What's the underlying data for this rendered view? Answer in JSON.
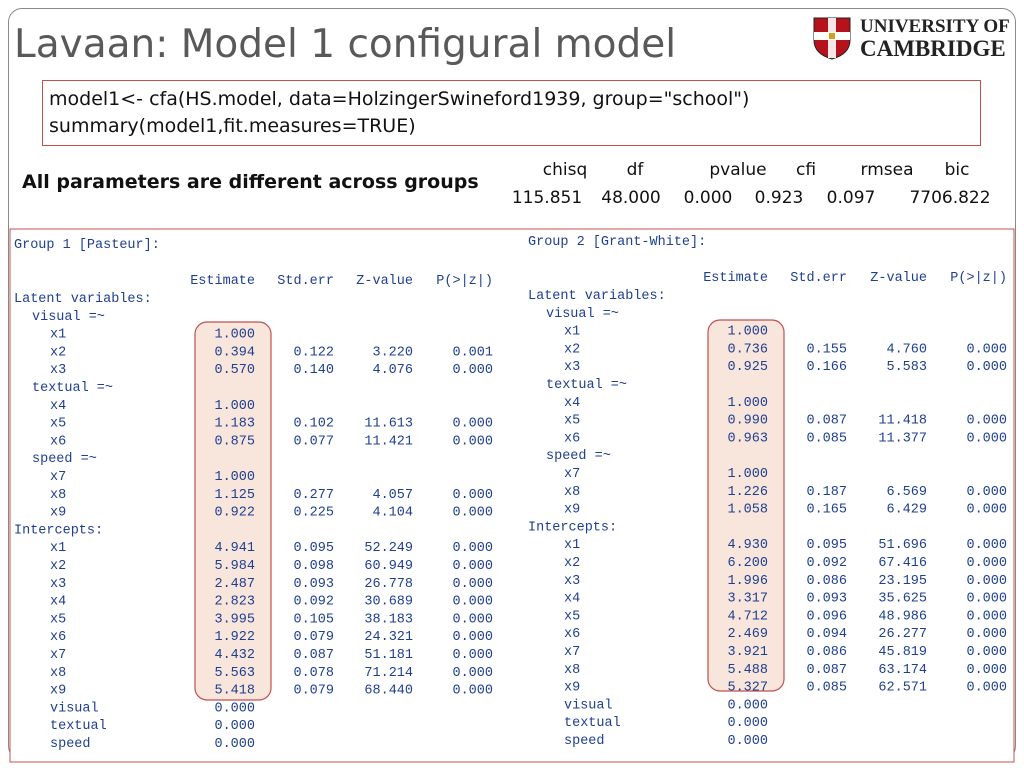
{
  "title": "Lavaan: Model 1 configural model",
  "logo": {
    "line1": "UNIVERSITY OF",
    "line2": "CAMBRIDGE"
  },
  "code": [
    "model1<- cfa(HS.model, data=HolzingerSwineford1939, group=\"school\")",
    "summary(model1,fit.measures=TRUE)"
  ],
  "note": "All parameters are different across groups",
  "fit": {
    "headers": [
      "chisq",
      "df",
      "pvalue",
      "cfi",
      "rmsea",
      "bic"
    ],
    "values": [
      "115.851",
      "48.000",
      "0.000",
      "0.923",
      "0.097",
      "7706.822"
    ]
  },
  "groups": [
    {
      "title": "Group 1 [Pasteur]:",
      "headers": [
        "Estimate",
        "Std.err",
        "Z-value",
        "P(>|z|)"
      ],
      "sections": [
        {
          "title": "Latent variables:",
          "blocks": [
            {
              "title": "visual =~",
              "rows": [
                [
                  "x1",
                  "1.000"
                ],
                [
                  "x2",
                  "0.394",
                  "0.122",
                  "3.220",
                  "0.001"
                ],
                [
                  "x3",
                  "0.570",
                  "0.140",
                  "4.076",
                  "0.000"
                ]
              ]
            },
            {
              "title": "textual =~",
              "rows": [
                [
                  "x4",
                  "1.000"
                ],
                [
                  "x5",
                  "1.183",
                  "0.102",
                  "11.613",
                  "0.000"
                ],
                [
                  "x6",
                  "0.875",
                  "0.077",
                  "11.421",
                  "0.000"
                ]
              ]
            },
            {
              "title": "speed =~",
              "rows": [
                [
                  "x7",
                  "1.000"
                ],
                [
                  "x8",
                  "1.125",
                  "0.277",
                  "4.057",
                  "0.000"
                ],
                [
                  "x9",
                  "0.922",
                  "0.225",
                  "4.104",
                  "0.000"
                ]
              ]
            }
          ]
        },
        {
          "title": "Intercepts:",
          "rows": [
            [
              "x1",
              "4.941",
              "0.095",
              "52.249",
              "0.000"
            ],
            [
              "x2",
              "5.984",
              "0.098",
              "60.949",
              "0.000"
            ],
            [
              "x3",
              "2.487",
              "0.093",
              "26.778",
              "0.000"
            ],
            [
              "x4",
              "2.823",
              "0.092",
              "30.689",
              "0.000"
            ],
            [
              "x5",
              "3.995",
              "0.105",
              "38.183",
              "0.000"
            ],
            [
              "x6",
              "1.922",
              "0.079",
              "24.321",
              "0.000"
            ],
            [
              "x7",
              "4.432",
              "0.087",
              "51.181",
              "0.000"
            ],
            [
              "x8",
              "5.563",
              "0.078",
              "71.214",
              "0.000"
            ],
            [
              "x9",
              "5.418",
              "0.079",
              "68.440",
              "0.000"
            ],
            [
              "visual",
              "0.000"
            ],
            [
              "textual",
              "0.000"
            ],
            [
              "speed",
              "0.000"
            ]
          ]
        }
      ]
    },
    {
      "title": "Group 2 [Grant-White]:",
      "headers": [
        "Estimate",
        "Std.err",
        "Z-value",
        "P(>|z|)"
      ],
      "sections": [
        {
          "title": "Latent variables:",
          "blocks": [
            {
              "title": "visual =~",
              "rows": [
                [
                  "x1",
                  "1.000"
                ],
                [
                  "x2",
                  "0.736",
                  "0.155",
                  "4.760",
                  "0.000"
                ],
                [
                  "x3",
                  "0.925",
                  "0.166",
                  "5.583",
                  "0.000"
                ]
              ]
            },
            {
              "title": "textual =~",
              "rows": [
                [
                  "x4",
                  "1.000"
                ],
                [
                  "x5",
                  "0.990",
                  "0.087",
                  "11.418",
                  "0.000"
                ],
                [
                  "x6",
                  "0.963",
                  "0.085",
                  "11.377",
                  "0.000"
                ]
              ]
            },
            {
              "title": "speed =~",
              "rows": [
                [
                  "x7",
                  "1.000"
                ],
                [
                  "x8",
                  "1.226",
                  "0.187",
                  "6.569",
                  "0.000"
                ],
                [
                  "x9",
                  "1.058",
                  "0.165",
                  "6.429",
                  "0.000"
                ]
              ]
            }
          ]
        },
        {
          "title": "Intercepts:",
          "rows": [
            [
              "x1",
              "4.930",
              "0.095",
              "51.696",
              "0.000"
            ],
            [
              "x2",
              "6.200",
              "0.092",
              "67.416",
              "0.000"
            ],
            [
              "x3",
              "1.996",
              "0.086",
              "23.195",
              "0.000"
            ],
            [
              "x4",
              "3.317",
              "0.093",
              "35.625",
              "0.000"
            ],
            [
              "x5",
              "4.712",
              "0.096",
              "48.986",
              "0.000"
            ],
            [
              "x6",
              "2.469",
              "0.094",
              "26.277",
              "0.000"
            ],
            [
              "x7",
              "3.921",
              "0.086",
              "45.819",
              "0.000"
            ],
            [
              "x8",
              "5.488",
              "0.087",
              "63.174",
              "0.000"
            ],
            [
              "x9",
              "5.327",
              "0.085",
              "62.571",
              "0.000"
            ],
            [
              "visual",
              "0.000"
            ],
            [
              "textual",
              "0.000"
            ],
            [
              "speed",
              "0.000"
            ]
          ]
        }
      ]
    }
  ]
}
